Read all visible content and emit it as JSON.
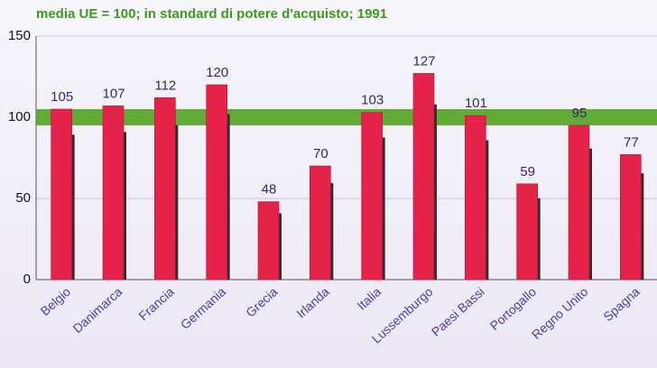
{
  "chart_data": {
    "type": "bar",
    "title": "media UE = 100; in standard di potere d'acquisto; 1991",
    "categories": [
      "Belgio",
      "Danimarca",
      "Francia",
      "Germania",
      "Grecia",
      "Irlanda",
      "Italia",
      "Lussemburgo",
      "Paesi Bassi",
      "Portogallo",
      "Regno Unito",
      "Spagna"
    ],
    "values": [
      105,
      107,
      112,
      120,
      48,
      70,
      103,
      127,
      101,
      59,
      95,
      77
    ],
    "color": "#e5234a",
    "reference_line": 100,
    "reference_color": "#5aa82c",
    "ylim": [
      0,
      150
    ],
    "yticks": [
      0,
      50,
      100,
      150
    ],
    "grid": true
  }
}
